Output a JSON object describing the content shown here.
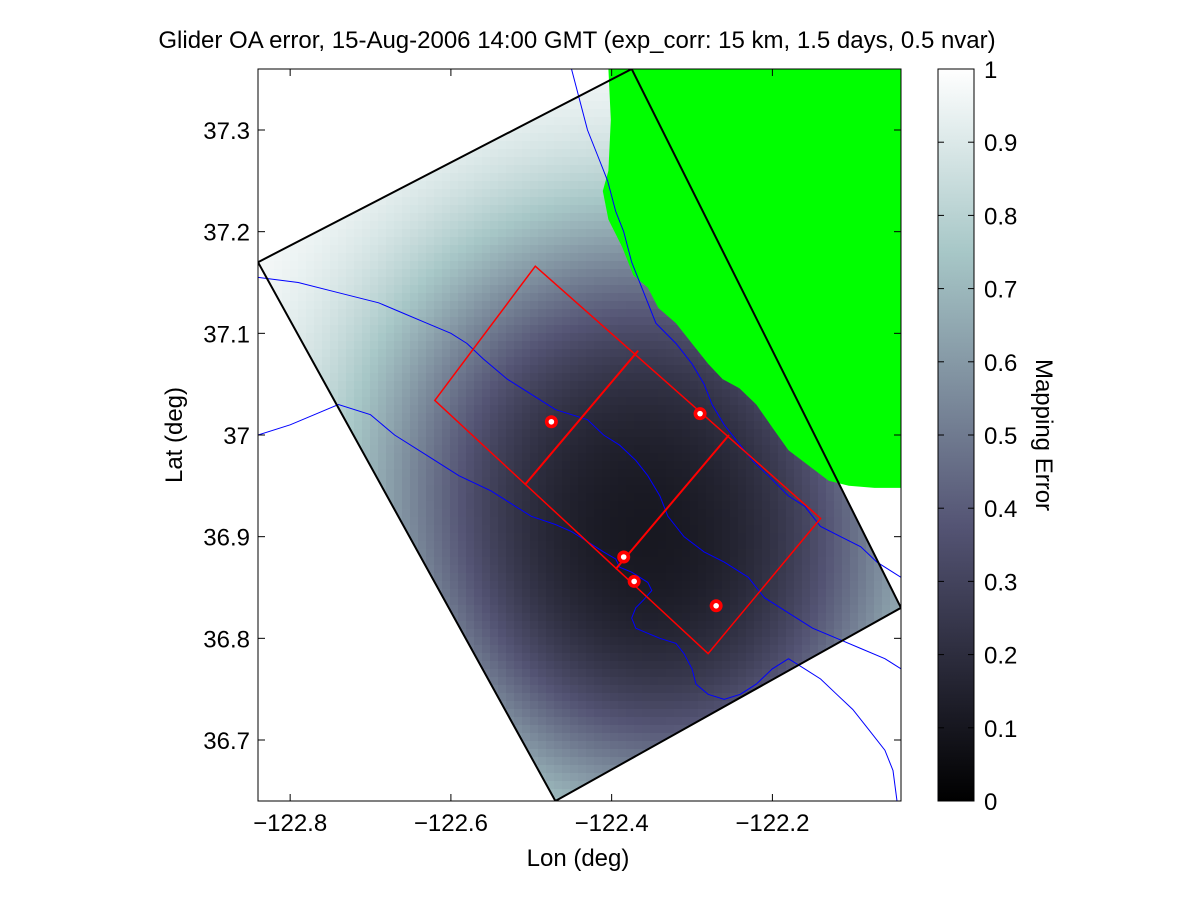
{
  "chart_data": {
    "type": "heatmap",
    "title": "Glider OA error, 15-Aug-2006 14:00 GMT (exp_corr: 15 km, 1.5 days, 0.5 nvar)",
    "xlabel": "Lon (deg)",
    "ylabel": "Lat (deg)",
    "xlim": [
      -122.84,
      -122.04
    ],
    "ylim": [
      36.64,
      37.36
    ],
    "xticks": [
      -122.8,
      -122.6,
      -122.4,
      -122.2
    ],
    "xtick_labels": [
      "−122.8",
      "−122.6",
      "−122.4",
      "−122.2"
    ],
    "yticks": [
      36.7,
      36.8,
      36.9,
      37.0,
      37.1,
      37.2,
      37.3
    ],
    "ytick_labels": [
      "36.7",
      "36.8",
      "36.9",
      "37",
      "37.1",
      "37.2",
      "37.3"
    ],
    "colorbar": {
      "label": "Mapping Error",
      "range": [
        0,
        1
      ],
      "ticks": [
        0,
        0.1,
        0.2,
        0.3,
        0.4,
        0.5,
        0.6,
        0.7,
        0.8,
        0.9,
        1
      ],
      "tick_labels": [
        "0",
        "0.1",
        "0.2",
        "0.3",
        "0.4",
        "0.5",
        "0.6",
        "0.7",
        "0.8",
        "0.9",
        "1"
      ],
      "colormap": "bone",
      "color_low": "#000000",
      "color_high": "#ffffff"
    },
    "colors": {
      "land": "#00ff00",
      "bathymetry": "#0000ff",
      "domain_outline": "#000000",
      "sample_grid": "#ff0000",
      "glider_marker": "#ff0000"
    },
    "glider_positions": [
      {
        "lon": -122.475,
        "lat": 37.013
      },
      {
        "lon": -122.29,
        "lat": 37.021
      },
      {
        "lon": -122.385,
        "lat": 36.88
      },
      {
        "lon": -122.372,
        "lat": 36.856
      },
      {
        "lon": -122.27,
        "lat": 36.832
      }
    ],
    "domain_outline": [
      {
        "lon": -122.84,
        "lat": 37.17
      },
      {
        "lon": -122.375,
        "lat": 37.36
      },
      {
        "lon": -122.04,
        "lat": 36.83
      },
      {
        "lon": -122.47,
        "lat": 36.64
      }
    ],
    "sample_grid": {
      "corners": [
        {
          "lon": -122.62,
          "lat": 37.034
        },
        {
          "lon": -122.495,
          "lat": 37.166
        },
        {
          "lon": -122.14,
          "lat": 36.918
        },
        {
          "lon": -122.28,
          "lat": 36.785
        }
      ],
      "cross_lines": [
        [
          {
            "lon": -122.508,
            "lat": 36.951
          },
          {
            "lon": -122.367,
            "lat": 37.083
          }
        ],
        [
          {
            "lon": -122.395,
            "lat": 36.868
          },
          {
            "lon": -122.254,
            "lat": 37.0
          }
        ]
      ]
    },
    "error_field": {
      "background": 1.0,
      "minima": [
        {
          "lon": -122.475,
          "lat": 37.013,
          "depth": 0.5
        },
        {
          "lon": -122.29,
          "lat": 37.021,
          "depth": 0.45
        },
        {
          "lon": -122.385,
          "lat": 36.88,
          "depth": 0.45
        },
        {
          "lon": -122.372,
          "lat": 36.856,
          "depth": 0.45
        },
        {
          "lon": -122.27,
          "lat": 36.832,
          "depth": 0.5
        }
      ]
    },
    "coastline": [
      [
        -122.404,
        37.36
      ],
      [
        -122.401,
        37.31
      ],
      [
        -122.404,
        37.26
      ],
      [
        -122.411,
        37.24
      ],
      [
        -122.404,
        37.212
      ],
      [
        -122.387,
        37.185
      ],
      [
        -122.373,
        37.157
      ],
      [
        -122.355,
        37.145
      ],
      [
        -122.342,
        37.125
      ],
      [
        -122.32,
        37.11
      ],
      [
        -122.3,
        37.09
      ],
      [
        -122.28,
        37.07
      ],
      [
        -122.262,
        37.055
      ],
      [
        -122.241,
        37.046
      ],
      [
        -122.22,
        37.03
      ],
      [
        -122.198,
        37.005
      ],
      [
        -122.18,
        36.985
      ],
      [
        -122.155,
        36.97
      ],
      [
        -122.13,
        36.955
      ],
      [
        -122.105,
        36.95
      ],
      [
        -122.073,
        36.948
      ],
      [
        -122.04,
        36.948
      ]
    ],
    "bathymetry_contours": [
      [
        [
          -122.45,
          37.36
        ],
        [
          -122.44,
          37.33
        ],
        [
          -122.43,
          37.3
        ],
        [
          -122.415,
          37.27
        ],
        [
          -122.405,
          37.25
        ],
        [
          -122.395,
          37.22
        ],
        [
          -122.385,
          37.2
        ],
        [
          -122.375,
          37.17
        ],
        [
          -122.36,
          37.14
        ],
        [
          -122.345,
          37.11
        ],
        [
          -122.32,
          37.09
        ],
        [
          -122.3,
          37.07
        ],
        [
          -122.285,
          37.05
        ],
        [
          -122.275,
          37.03
        ],
        [
          -122.26,
          37.01
        ],
        [
          -122.24,
          36.99
        ],
        [
          -122.225,
          36.975
        ],
        [
          -122.205,
          36.96
        ],
        [
          -122.18,
          36.94
        ],
        [
          -122.16,
          36.93
        ],
        [
          -122.14,
          36.91
        ],
        [
          -122.115,
          36.9
        ],
        [
          -122.09,
          36.89
        ],
        [
          -122.07,
          36.875
        ],
        [
          -122.04,
          36.86
        ]
      ],
      [
        [
          -122.84,
          37.155
        ],
        [
          -122.79,
          37.15
        ],
        [
          -122.74,
          37.14
        ],
        [
          -122.69,
          37.13
        ],
        [
          -122.66,
          37.12
        ],
        [
          -122.63,
          37.11
        ],
        [
          -122.6,
          37.1
        ],
        [
          -122.58,
          37.09
        ],
        [
          -122.56,
          37.075
        ],
        [
          -122.53,
          37.055
        ],
        [
          -122.5,
          37.04
        ],
        [
          -122.47,
          37.025
        ],
        [
          -122.43,
          37.015
        ],
        [
          -122.41,
          37.0
        ],
        [
          -122.39,
          36.99
        ],
        [
          -122.37,
          36.975
        ],
        [
          -122.355,
          36.96
        ],
        [
          -122.34,
          36.94
        ],
        [
          -122.33,
          36.92
        ],
        [
          -122.31,
          36.9
        ],
        [
          -122.285,
          36.885
        ],
        [
          -122.26,
          36.875
        ],
        [
          -122.23,
          36.86
        ],
        [
          -122.21,
          36.84
        ],
        [
          -122.18,
          36.825
        ],
        [
          -122.15,
          36.81
        ],
        [
          -122.12,
          36.8
        ],
        [
          -122.09,
          36.79
        ],
        [
          -122.06,
          36.78
        ],
        [
          -122.04,
          36.77
        ]
      ],
      [
        [
          -122.84,
          37.0
        ],
        [
          -122.8,
          37.01
        ],
        [
          -122.77,
          37.02
        ],
        [
          -122.74,
          37.03
        ],
        [
          -122.7,
          37.02
        ],
        [
          -122.67,
          37.0
        ],
        [
          -122.63,
          36.98
        ],
        [
          -122.59,
          36.96
        ],
        [
          -122.55,
          36.945
        ],
        [
          -122.52,
          36.93
        ],
        [
          -122.5,
          36.92
        ],
        [
          -122.47,
          36.912
        ],
        [
          -122.45,
          36.905
        ],
        [
          -122.43,
          36.895
        ],
        [
          -122.41,
          36.885
        ],
        [
          -122.395,
          36.878
        ],
        [
          -122.39,
          36.87
        ],
        [
          -122.375,
          36.865
        ],
        [
          -122.365,
          36.86
        ],
        [
          -122.355,
          36.855
        ],
        [
          -122.35,
          36.847
        ],
        [
          -122.36,
          36.838
        ],
        [
          -122.37,
          36.83
        ],
        [
          -122.375,
          36.82
        ],
        [
          -122.37,
          36.81
        ],
        [
          -122.355,
          36.805
        ],
        [
          -122.34,
          36.8
        ],
        [
          -122.32,
          36.795
        ],
        [
          -122.31,
          36.785
        ],
        [
          -122.3,
          36.77
        ],
        [
          -122.295,
          36.755
        ],
        [
          -122.28,
          36.745
        ],
        [
          -122.26,
          36.74
        ],
        [
          -122.24,
          36.745
        ],
        [
          -122.22,
          36.755
        ],
        [
          -122.2,
          36.77
        ],
        [
          -122.18,
          36.78
        ],
        [
          -122.16,
          36.77
        ],
        [
          -122.14,
          36.76
        ],
        [
          -122.12,
          36.745
        ],
        [
          -122.1,
          36.73
        ],
        [
          -122.08,
          36.71
        ],
        [
          -122.06,
          36.69
        ],
        [
          -122.05,
          36.67
        ],
        [
          -122.045,
          36.64
        ]
      ]
    ]
  }
}
